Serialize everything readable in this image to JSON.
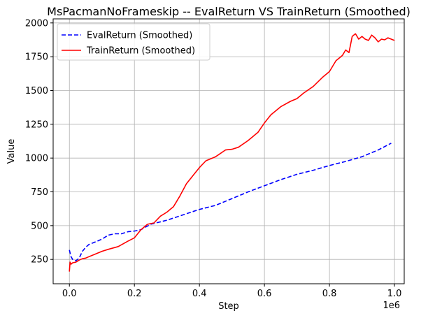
{
  "chart_data": {
    "type": "line",
    "title": "MsPacmanNoFrameskip -- EvalReturn VS TrainReturn (Smoothed)",
    "xlabel": "Step",
    "ylabel": "Value",
    "x_offset_label": "1e6",
    "xlim": [
      -0.05,
      1.03
    ],
    "ylim": [
      70,
      2030
    ],
    "xticks": [
      0.0,
      0.2,
      0.4,
      0.6,
      0.8,
      1.0
    ],
    "xtick_labels": [
      "0.0",
      "0.2",
      "0.4",
      "0.6",
      "0.8",
      "1.0"
    ],
    "yticks": [
      250,
      500,
      750,
      1000,
      1250,
      1500,
      1750,
      2000
    ],
    "ytick_labels": [
      "250",
      "500",
      "750",
      "1000",
      "1250",
      "1500",
      "1750",
      "2000"
    ],
    "grid": true,
    "legend_position": "top-left",
    "series": [
      {
        "name": "EvalReturn (Smoothed)",
        "color": "#0000ff",
        "style": "dashed",
        "x": [
          0.0,
          0.005,
          0.01,
          0.02,
          0.03,
          0.04,
          0.05,
          0.06,
          0.08,
          0.1,
          0.12,
          0.14,
          0.16,
          0.18,
          0.2,
          0.22,
          0.25,
          0.3,
          0.35,
          0.4,
          0.45,
          0.5,
          0.55,
          0.6,
          0.65,
          0.7,
          0.75,
          0.8,
          0.85,
          0.9,
          0.95,
          0.99
        ],
        "y": [
          320,
          270,
          250,
          240,
          260,
          310,
          340,
          360,
          380,
          400,
          430,
          440,
          440,
          455,
          460,
          470,
          510,
          540,
          580,
          620,
          650,
          700,
          750,
          795,
          840,
          880,
          910,
          945,
          975,
          1010,
          1060,
          1110
        ]
      },
      {
        "name": "TrainReturn (Smoothed)",
        "color": "#ff0000",
        "style": "solid",
        "x": [
          0.0,
          0.002,
          0.005,
          0.01,
          0.02,
          0.03,
          0.04,
          0.05,
          0.06,
          0.08,
          0.1,
          0.12,
          0.15,
          0.18,
          0.2,
          0.22,
          0.24,
          0.26,
          0.28,
          0.3,
          0.32,
          0.34,
          0.36,
          0.38,
          0.4,
          0.42,
          0.45,
          0.48,
          0.5,
          0.52,
          0.55,
          0.58,
          0.6,
          0.62,
          0.65,
          0.68,
          0.7,
          0.72,
          0.75,
          0.78,
          0.8,
          0.82,
          0.84,
          0.85,
          0.86,
          0.87,
          0.88,
          0.89,
          0.9,
          0.91,
          0.92,
          0.93,
          0.94,
          0.95,
          0.96,
          0.97,
          0.98,
          0.99,
          1.0
        ],
        "y": [
          160,
          230,
          215,
          225,
          230,
          245,
          255,
          260,
          270,
          290,
          310,
          325,
          345,
          385,
          410,
          470,
          510,
          520,
          570,
          600,
          640,
          720,
          810,
          870,
          930,
          980,
          1010,
          1060,
          1065,
          1080,
          1130,
          1190,
          1260,
          1320,
          1380,
          1420,
          1440,
          1480,
          1530,
          1600,
          1640,
          1720,
          1760,
          1800,
          1780,
          1900,
          1920,
          1880,
          1900,
          1880,
          1870,
          1910,
          1890,
          1860,
          1880,
          1875,
          1890,
          1880,
          1870
        ]
      }
    ]
  }
}
